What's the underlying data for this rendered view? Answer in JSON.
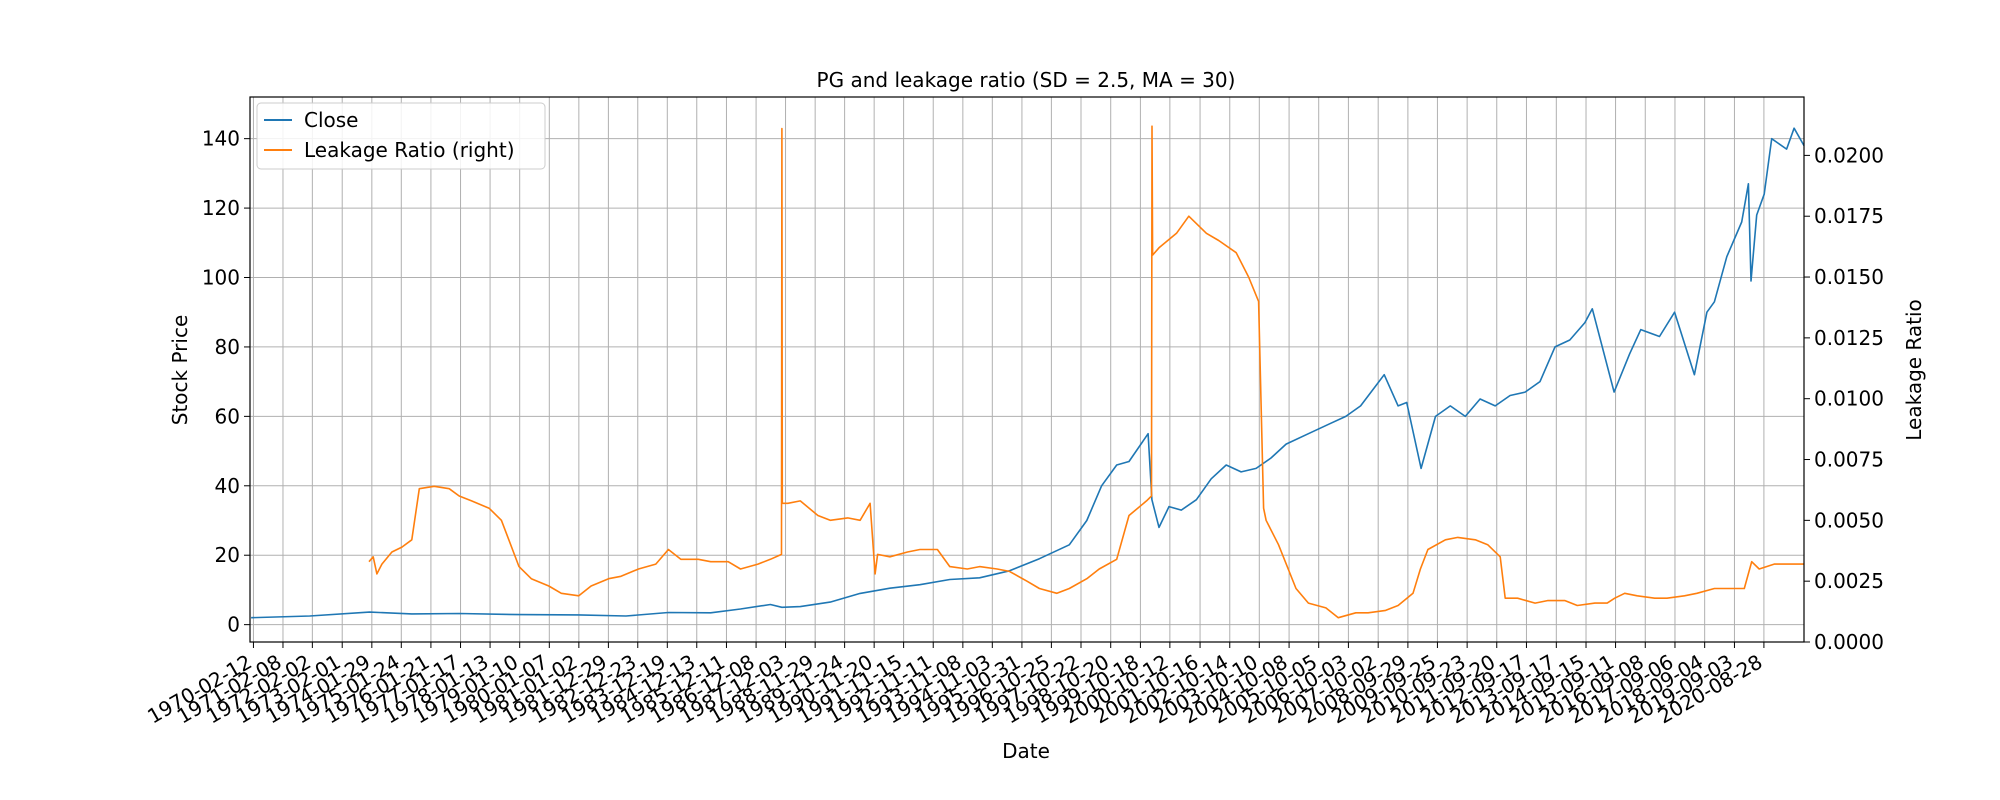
{
  "chart_data": {
    "type": "line",
    "title": "PG and leakage ratio (SD = 2.5, MA = 30)",
    "xlabel": "Date",
    "ylabel_left": "Stock Price",
    "ylabel_right": "Leakage Ratio",
    "grid": true,
    "legend_position": "top-left",
    "x_range": [
      "1970-01-01",
      "2021-12-31"
    ],
    "ylim_left": [
      -5,
      152
    ],
    "ylim_right": [
      0.0,
      0.0224
    ],
    "yticks_left": [
      0,
      20,
      40,
      60,
      80,
      100,
      120,
      140
    ],
    "yticks_right": [
      "0.0000",
      "0.0025",
      "0.0050",
      "0.0075",
      "0.0100",
      "0.0125",
      "0.0150",
      "0.0175",
      "0.0200"
    ],
    "xticks": [
      "1970-02-12",
      "1971-02-08",
      "1972-02-02",
      "1973-02-01",
      "1974-01-29",
      "1975-01-24",
      "1976-01-21",
      "1977-01-17",
      "1978-01-13",
      "1979-01-10",
      "1980-01-07",
      "1981-01-02",
      "1981-12-29",
      "1982-12-23",
      "1983-12-19",
      "1984-12-13",
      "1985-12-11",
      "1986-12-08",
      "1987-12-03",
      "1988-11-29",
      "1989-11-24",
      "1990-11-20",
      "1991-11-15",
      "1992-11-11",
      "1993-11-08",
      "1994-11-03",
      "1995-10-31",
      "1996-10-25",
      "1997-10-22",
      "1998-10-20",
      "1999-10-18",
      "2000-10-12",
      "2001-10-16",
      "2002-10-14",
      "2003-10-10",
      "2004-10-08",
      "2005-10-05",
      "2006-10-03",
      "2007-10-02",
      "2008-09-29",
      "2009-09-25",
      "2010-09-23",
      "2011-09-20",
      "2012-09-17",
      "2013-09-17",
      "2014-09-15",
      "2015-09-11",
      "2016-09-08",
      "2017-09-06",
      "2018-09-04",
      "2019-09-03",
      "2020-08-28"
    ],
    "series": [
      {
        "name": "Close",
        "axis": "left",
        "color": "#1f77b4",
        "x": [
          "1970-01-15",
          "1972-01-01",
          "1974-01-01",
          "1975-06-01",
          "1977-01-01",
          "1979-01-01",
          "1981-01-01",
          "1982-08-01",
          "1984-01-01",
          "1985-06-01",
          "1986-06-01",
          "1987-06-01",
          "1987-10-20",
          "1988-06-01",
          "1989-06-01",
          "1990-06-01",
          "1991-06-01",
          "1992-06-01",
          "1993-06-01",
          "1994-06-01",
          "1995-06-01",
          "1996-06-01",
          "1997-06-01",
          "1998-01-01",
          "1998-07-01",
          "1999-01-01",
          "1999-06-01",
          "2000-01-20",
          "2000-03-07",
          "2000-06-01",
          "2000-10-01",
          "2001-03-01",
          "2001-09-01",
          "2002-03-01",
          "2002-09-01",
          "2003-03-01",
          "2003-09-01",
          "2004-03-01",
          "2004-09-01",
          "2005-06-01",
          "2006-03-01",
          "2006-09-01",
          "2007-03-01",
          "2007-12-15",
          "2008-06-01",
          "2008-09-15",
          "2009-03-09",
          "2009-09-01",
          "2010-03-01",
          "2010-09-01",
          "2011-03-01",
          "2011-09-01",
          "2012-03-01",
          "2012-09-01",
          "2013-03-01",
          "2013-09-01",
          "2014-03-01",
          "2014-09-01",
          "2014-12-01",
          "2015-08-24",
          "2016-03-01",
          "2016-07-15",
          "2017-03-01",
          "2017-09-01",
          "2018-05-01",
          "2018-10-01",
          "2019-01-01",
          "2019-06-01",
          "2019-12-01",
          "2020-02-20",
          "2020-03-23",
          "2020-06-01",
          "2020-09-01",
          "2020-12-01",
          "2021-06-01",
          "2021-09-01",
          "2021-12-31"
        ],
        "values": [
          2,
          2.5,
          3.6,
          3.1,
          3.2,
          2.9,
          2.8,
          2.5,
          3.5,
          3.4,
          4.5,
          5.8,
          5.0,
          5.2,
          6.5,
          9,
          10.5,
          11.5,
          13,
          13.5,
          15.5,
          19,
          23,
          30,
          40,
          46,
          47,
          55,
          36,
          28,
          34,
          33,
          36,
          42,
          46,
          44,
          45,
          48,
          52,
          55,
          58,
          60,
          63,
          72,
          63,
          64,
          45,
          60,
          63,
          60,
          65,
          63,
          66,
          67,
          70,
          80,
          82,
          87,
          91,
          67,
          78,
          85,
          83,
          90,
          72,
          90,
          93,
          106,
          116,
          127,
          99,
          118,
          124,
          140,
          137,
          143,
          138
        ]
      },
      {
        "name": "Leakage Ratio (right)",
        "axis": "right",
        "color": "#ff7f0e",
        "x": [
          "1973-12-25",
          "1974-02-15",
          "1974-04-01",
          "1974-06-01",
          "1974-10-01",
          "1975-02-01",
          "1975-06-01",
          "1975-09-01",
          "1976-03-01",
          "1976-09-01",
          "1977-01-01",
          "1977-06-01",
          "1978-01-01",
          "1978-06-01",
          "1979-01-01",
          "1979-06-01",
          "1980-01-01",
          "1980-06-01",
          "1981-01-01",
          "1981-06-01",
          "1982-01-01",
          "1982-06-01",
          "1983-01-01",
          "1983-08-01",
          "1984-01-01",
          "1984-06-01",
          "1985-01-01",
          "1985-06-01",
          "1986-01-01",
          "1986-06-01",
          "1987-01-01",
          "1987-06-01",
          "1987-10-15",
          "1987-10-20",
          "1987-10-25",
          "1988-01-01",
          "1988-06-01",
          "1989-01-01",
          "1989-06-01",
          "1990-01-01",
          "1990-06-01",
          "1990-10-01",
          "1990-12-01",
          "1991-01-01",
          "1991-06-01",
          "1992-01-01",
          "1992-06-01",
          "1993-01-01",
          "1993-06-01",
          "1994-01-01",
          "1994-06-01",
          "1995-01-01",
          "1995-06-01",
          "1996-01-01",
          "1996-06-01",
          "1997-01-01",
          "1997-06-01",
          "1998-01-01",
          "1998-06-01",
          "1999-01-01",
          "1999-06-01",
          "2000-01-01",
          "2000-03-01",
          "2000-03-08",
          "2000-03-15",
          "2000-06-01",
          "2001-01-01",
          "2001-06-01",
          "2002-01-01",
          "2002-06-01",
          "2003-01-01",
          "2003-06-01",
          "2003-10-01",
          "2003-12-01",
          "2004-01-01",
          "2004-06-01",
          "2005-01-01",
          "2005-06-01",
          "2006-01-01",
          "2006-06-01",
          "2007-01-01",
          "2007-06-01",
          "2008-01-01",
          "2008-06-01",
          "2008-12-01",
          "2009-03-01",
          "2009-06-01",
          "2010-01-01",
          "2010-06-01",
          "2011-01-01",
          "2011-06-01",
          "2011-11-01",
          "2012-01-01",
          "2012-06-01",
          "2013-01-01",
          "2013-06-01",
          "2014-01-01",
          "2014-06-01",
          "2015-01-01",
          "2015-06-01",
          "2015-09-01",
          "2016-01-01",
          "2016-06-01",
          "2017-01-01",
          "2017-06-01",
          "2018-01-01",
          "2018-06-01",
          "2019-01-01",
          "2019-06-01",
          "2020-01-01",
          "2020-04-01",
          "2020-07-01",
          "2021-01-01",
          "2021-12-31"
        ],
        "values": [
          0.0033,
          0.0035,
          0.0028,
          0.0032,
          0.0037,
          0.0039,
          0.0042,
          0.0063,
          0.0064,
          0.0063,
          0.006,
          0.0058,
          0.0055,
          0.005,
          0.0031,
          0.0026,
          0.0023,
          0.002,
          0.0019,
          0.0023,
          0.0026,
          0.0027,
          0.003,
          0.0032,
          0.0038,
          0.0034,
          0.0034,
          0.0033,
          0.0033,
          0.003,
          0.0032,
          0.0034,
          0.0036,
          0.0211,
          0.0057,
          0.0057,
          0.0058,
          0.0052,
          0.005,
          0.0051,
          0.005,
          0.0057,
          0.0028,
          0.0036,
          0.0035,
          0.0037,
          0.0038,
          0.0038,
          0.0031,
          0.003,
          0.0031,
          0.003,
          0.0029,
          0.0025,
          0.0022,
          0.002,
          0.0022,
          0.0026,
          0.003,
          0.0034,
          0.0052,
          0.0058,
          0.006,
          0.0212,
          0.0159,
          0.0162,
          0.0168,
          0.0175,
          0.0168,
          0.0165,
          0.016,
          0.015,
          0.014,
          0.0055,
          0.005,
          0.004,
          0.0022,
          0.0016,
          0.0014,
          0.001,
          0.0012,
          0.0012,
          0.0013,
          0.0015,
          0.002,
          0.003,
          0.0038,
          0.0042,
          0.0043,
          0.0042,
          0.004,
          0.0035,
          0.0018,
          0.0018,
          0.0016,
          0.0017,
          0.0017,
          0.0015,
          0.0016,
          0.0016,
          0.0018,
          0.002,
          0.0019,
          0.0018,
          0.0018,
          0.0019,
          0.002,
          0.0022,
          0.0022,
          0.0022,
          0.0033,
          0.003,
          0.0032,
          0.0032
        ]
      }
    ]
  }
}
